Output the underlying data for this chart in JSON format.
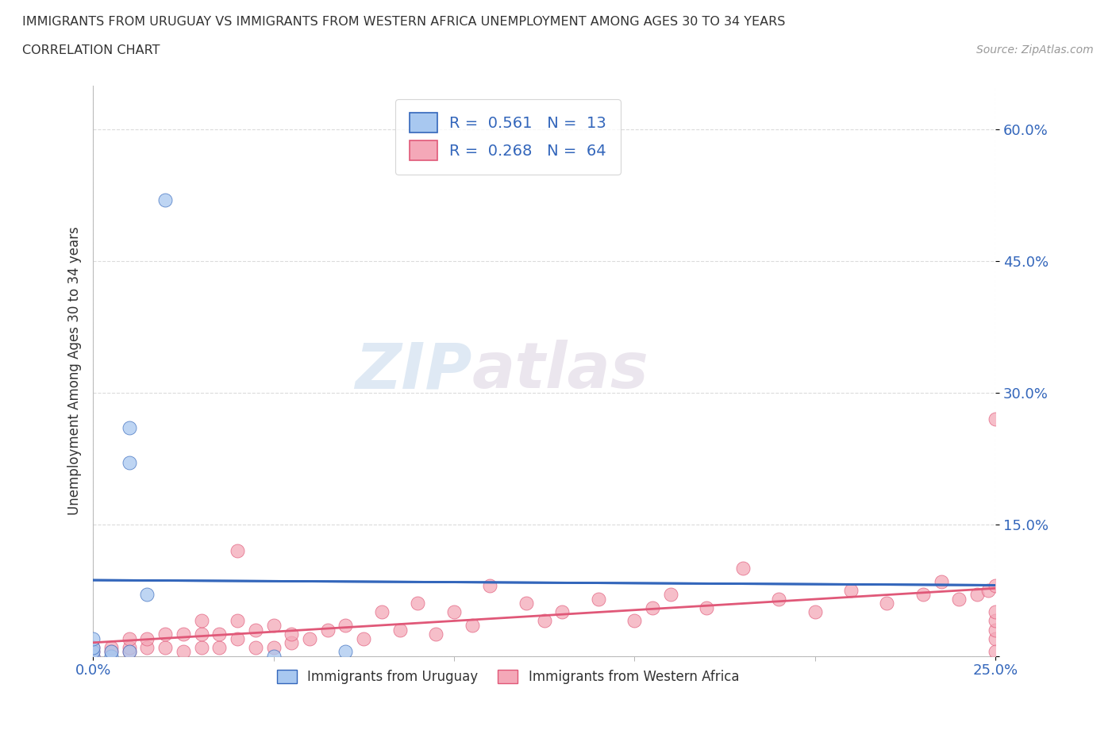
{
  "title_line1": "IMMIGRANTS FROM URUGUAY VS IMMIGRANTS FROM WESTERN AFRICA UNEMPLOYMENT AMONG AGES 30 TO 34 YEARS",
  "title_line2": "CORRELATION CHART",
  "source_text": "Source: ZipAtlas.com",
  "ylabel": "Unemployment Among Ages 30 to 34 years",
  "xlim": [
    0.0,
    0.25
  ],
  "ylim": [
    0.0,
    0.65
  ],
  "yticks": [
    0.0,
    0.15,
    0.3,
    0.45,
    0.6
  ],
  "ytick_labels_right": [
    "",
    "15.0%",
    "30.0%",
    "45.0%",
    "60.0%"
  ],
  "xticks": [
    0.0,
    0.25
  ],
  "xtick_labels": [
    "0.0%",
    "25.0%"
  ],
  "watermark_zip": "ZIP",
  "watermark_atlas": "atlas",
  "color_uruguay": "#a8c8f0",
  "color_w_africa": "#f4a8b8",
  "trendline_color_uruguay": "#3366bb",
  "trendline_color_w_africa": "#e05878",
  "scatter_uruguay_x": [
    0.0,
    0.0,
    0.0,
    0.0,
    0.005,
    0.005,
    0.01,
    0.01,
    0.01,
    0.015,
    0.02,
    0.05,
    0.07
  ],
  "scatter_uruguay_y": [
    0.0,
    0.005,
    0.01,
    0.02,
    0.0,
    0.005,
    0.22,
    0.26,
    0.005,
    0.07,
    0.52,
    0.0,
    0.005
  ],
  "scatter_w_africa_x": [
    0.0,
    0.0,
    0.0,
    0.005,
    0.005,
    0.01,
    0.01,
    0.01,
    0.015,
    0.015,
    0.02,
    0.02,
    0.025,
    0.025,
    0.03,
    0.03,
    0.03,
    0.035,
    0.035,
    0.04,
    0.04,
    0.04,
    0.045,
    0.045,
    0.05,
    0.05,
    0.055,
    0.055,
    0.06,
    0.065,
    0.07,
    0.075,
    0.08,
    0.085,
    0.09,
    0.095,
    0.1,
    0.105,
    0.11,
    0.12,
    0.125,
    0.13,
    0.14,
    0.15,
    0.155,
    0.16,
    0.17,
    0.18,
    0.19,
    0.2,
    0.21,
    0.22,
    0.23,
    0.235,
    0.24,
    0.245,
    0.248,
    0.25,
    0.25,
    0.25,
    0.25,
    0.25,
    0.25,
    0.25
  ],
  "scatter_w_africa_y": [
    0.0,
    0.005,
    0.01,
    0.005,
    0.01,
    0.005,
    0.01,
    0.02,
    0.01,
    0.02,
    0.01,
    0.025,
    0.005,
    0.025,
    0.01,
    0.025,
    0.04,
    0.01,
    0.025,
    0.02,
    0.04,
    0.12,
    0.01,
    0.03,
    0.01,
    0.035,
    0.015,
    0.025,
    0.02,
    0.03,
    0.035,
    0.02,
    0.05,
    0.03,
    0.06,
    0.025,
    0.05,
    0.035,
    0.08,
    0.06,
    0.04,
    0.05,
    0.065,
    0.04,
    0.055,
    0.07,
    0.055,
    0.1,
    0.065,
    0.05,
    0.075,
    0.06,
    0.07,
    0.085,
    0.065,
    0.07,
    0.075,
    0.08,
    0.02,
    0.03,
    0.04,
    0.05,
    0.005,
    0.27
  ],
  "background_color": "#ffffff",
  "grid_color": "#cccccc",
  "legend_r_color": "#3366bb",
  "text_color": "#333333"
}
